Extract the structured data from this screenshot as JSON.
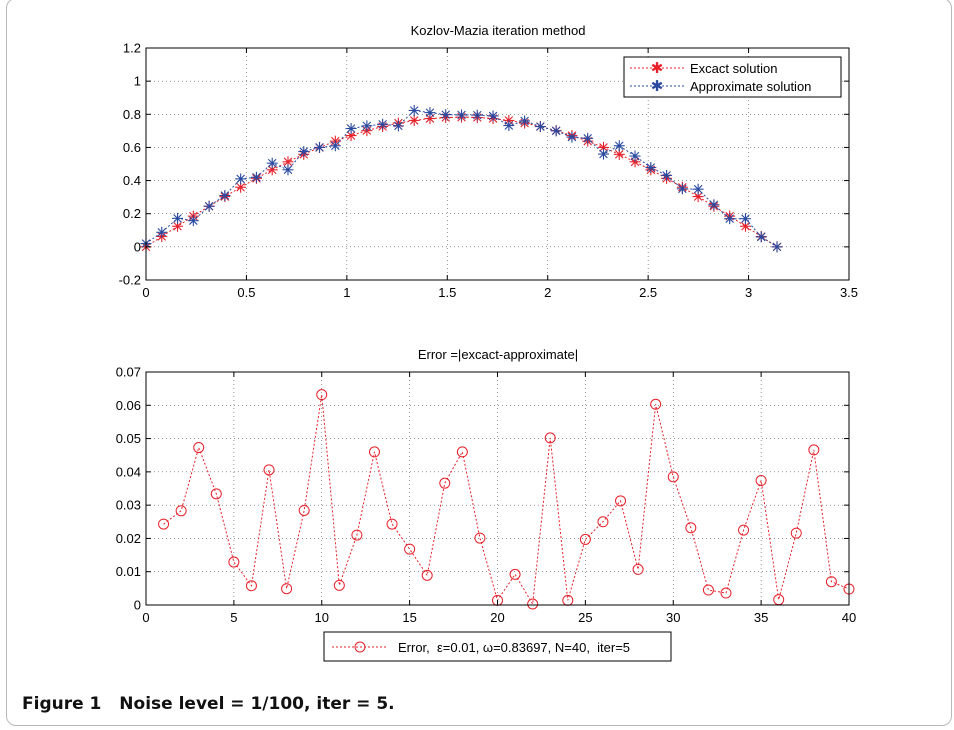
{
  "caption": {
    "label": "Figure 1",
    "text": "Noise level = 1/100, iter = 5."
  },
  "chart_data": [
    {
      "type": "line",
      "title": "Kozlov-Mazia iteration method",
      "xlabel": "",
      "ylabel": "",
      "xlim": [
        0,
        3.5
      ],
      "ylim": [
        -0.2,
        1.2
      ],
      "xticks": [
        0,
        0.5,
        1,
        1.5,
        2,
        2.5,
        3,
        3.5
      ],
      "yticks": [
        -0.2,
        0,
        0.2,
        0.4,
        0.6,
        0.8,
        1,
        1.2
      ],
      "xtick_labels": [
        "0",
        "0.5",
        "1",
        "1.5",
        "2",
        "2.5",
        "3",
        "3.5"
      ],
      "ytick_labels": [
        "-0.2",
        "0",
        "0.2",
        "0.4",
        "0.6",
        "0.8",
        "1",
        "1.2"
      ],
      "grid": true,
      "legend_position": "top-right",
      "x": [
        0,
        0.0785,
        0.1571,
        0.2356,
        0.3142,
        0.3927,
        0.4712,
        0.5498,
        0.6283,
        0.7069,
        0.7854,
        0.8639,
        0.9425,
        1.021,
        1.0996,
        1.1781,
        1.2566,
        1.3352,
        1.4137,
        1.4923,
        1.5708,
        1.6493,
        1.7279,
        1.8064,
        1.885,
        1.9635,
        2.042,
        2.1206,
        2.1991,
        2.2777,
        2.3562,
        2.4347,
        2.5133,
        2.5918,
        2.6704,
        2.7489,
        2.8274,
        2.906,
        2.9845,
        3.0631,
        3.1416
      ],
      "series": [
        {
          "name": "Excact solution",
          "color": "#e8202a",
          "marker": "star",
          "values": [
            0,
            0.0624,
            0.1243,
            0.1854,
            0.2452,
            0.3034,
            0.3596,
            0.4136,
            0.4648,
            0.5132,
            0.5583,
            0.5999,
            0.6378,
            0.6716,
            0.7012,
            0.7264,
            0.747,
            0.763,
            0.7742,
            0.7806,
            0.7826,
            0.7806,
            0.7742,
            0.763,
            0.747,
            0.7264,
            0.7012,
            0.6716,
            0.6378,
            0.5999,
            0.5583,
            0.5132,
            0.4648,
            0.4136,
            0.3596,
            0.3034,
            0.2452,
            0.1854,
            0.1243,
            0.0624,
            0
          ]
        },
        {
          "name": "Approximate solution",
          "color": "#2a4aa0",
          "marker": "star",
          "values": [
            0.02,
            0.088,
            0.172,
            0.158,
            0.245,
            0.31,
            0.41,
            0.42,
            0.505,
            0.465,
            0.575,
            0.6,
            0.61,
            0.714,
            0.73,
            0.74,
            0.73,
            0.823,
            0.81,
            0.798,
            0.796,
            0.795,
            0.79,
            0.732,
            0.76,
            0.726,
            0.7,
            0.662,
            0.655,
            0.56,
            0.61,
            0.548,
            0.479,
            0.431,
            0.35,
            0.348,
            0.254,
            0.17,
            0.17,
            0.06,
            0
          ]
        }
      ]
    },
    {
      "type": "line",
      "title": "Error =|excact-approximate|",
      "xlabel": "",
      "ylabel": "",
      "xlim": [
        0,
        40
      ],
      "ylim": [
        0,
        0.07
      ],
      "xticks": [
        0,
        5,
        10,
        15,
        20,
        25,
        30,
        35,
        40
      ],
      "yticks": [
        0,
        0.01,
        0.02,
        0.03,
        0.04,
        0.05,
        0.06,
        0.07
      ],
      "xtick_labels": [
        "0",
        "5",
        "10",
        "15",
        "20",
        "25",
        "30",
        "35",
        "40"
      ],
      "ytick_labels": [
        "0",
        "0.01",
        "0.02",
        "0.03",
        "0.04",
        "0.05",
        "0.06",
        "0.07"
      ],
      "grid": true,
      "legend_position": "bottom-outside",
      "x": [
        1,
        2,
        3,
        4,
        5,
        6,
        7,
        8,
        9,
        10,
        11,
        12,
        13,
        14,
        15,
        16,
        17,
        18,
        19,
        20,
        21,
        22,
        23,
        24,
        25,
        26,
        27,
        28,
        29,
        30,
        31,
        32,
        33,
        34,
        35,
        36,
        37,
        38,
        39,
        40
      ],
      "series": [
        {
          "name": "Error,  ε=0.01, ω=0.83697, N=40,  iter=5",
          "color": "#e8202a",
          "marker": "circle",
          "values": [
            0.0243,
            0.0283,
            0.0473,
            0.0334,
            0.0129,
            0.0058,
            0.0406,
            0.0049,
            0.0284,
            0.0632,
            0.0059,
            0.021,
            0.046,
            0.0243,
            0.0168,
            0.0089,
            0.0366,
            0.046,
            0.0201,
            0.0014,
            0.0092,
            0.0003,
            0.0502,
            0.0014,
            0.0197,
            0.025,
            0.0313,
            0.0107,
            0.0603,
            0.0385,
            0.0232,
            0.0045,
            0.0036,
            0.0225,
            0.0374,
            0.0016,
            0.0216,
            0.0466,
            0.007,
            0.0048
          ]
        }
      ]
    }
  ]
}
